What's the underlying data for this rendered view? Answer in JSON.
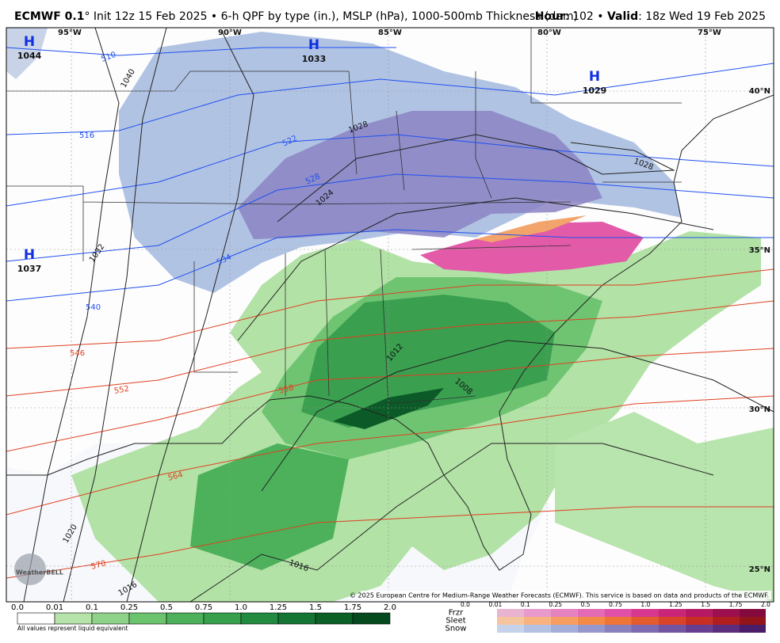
{
  "header": {
    "model": "ECMWF 0.1",
    "description": "° Init 12z 15 Feb 2025 • 6-h QPF by type (in.), MSLP (hPa), 1000-500mb Thickness (dam)",
    "hour_label": "Hour",
    "hour_value": ": 102 • ",
    "valid_label": "Valid",
    "valid_value": ": 18z Wed 19 Feb 2025"
  },
  "map": {
    "longitudes": [
      "95°W",
      "90°W",
      "85°W",
      "80°W",
      "75°W"
    ],
    "latitudes": [
      "40°N",
      "35°N",
      "30°N",
      "25°N"
    ],
    "highs": [
      {
        "letter": "H",
        "pressure": "1044"
      },
      {
        "letter": "H",
        "pressure": "1033"
      },
      {
        "letter": "H",
        "pressure": "1029"
      },
      {
        "letter": "H",
        "pressure": "1037"
      }
    ],
    "isobar_labels": [
      "1040",
      "1028",
      "1024",
      "1032",
      "1028",
      "1020",
      "1016",
      "1016",
      "1012",
      "1008"
    ],
    "thickness_labels": [
      "510",
      "516",
      "522",
      "528",
      "534",
      "540",
      "546",
      "552",
      "558",
      "564",
      "570"
    ],
    "credit": "© 2025 European Centre for Medium-Range Weather Forecasts (ECMWF). This service is based on data and products of the ECMWF.",
    "watermark": "WeatherBELL"
  },
  "legend": {
    "rain_ticks": [
      "0.0",
      "0.01",
      "0.1",
      "0.25",
      "0.5",
      "0.75",
      "1.0",
      "1.25",
      "1.5",
      "1.75",
      "2.0"
    ],
    "note": "All values represent liquid equivalent",
    "types": [
      "Frzr",
      "Sleet",
      "Snow"
    ],
    "type_ticks": [
      "0.0",
      "0.01",
      "0.1",
      "0.25",
      "0.5",
      "0.75",
      "1.0",
      "1.25",
      "1.5",
      "1.75",
      "2.0"
    ]
  }
}
